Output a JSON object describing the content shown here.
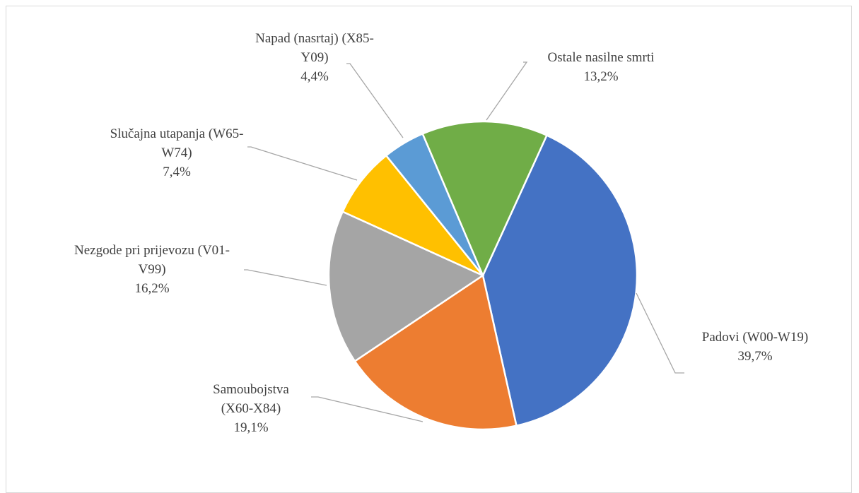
{
  "chart_data": {
    "type": "pie",
    "categories": [
      "Padovi (W00-W19)",
      "Samoubojstva (X60-X84)",
      "Nezgode pri prijevozu (V01-V99)",
      "Slučajna utapanja (W65-W74)",
      "Napad (nasrtaj) (X85-Y09)",
      "Ostale nasilne smrti"
    ],
    "values": [
      39.7,
      19.1,
      16.2,
      7.4,
      4.4,
      13.2
    ],
    "value_labels": [
      "39,7%",
      "19,1%",
      "16,2%",
      "7,4%",
      "4,4%",
      "13,2%"
    ],
    "colors": [
      "#4472c4",
      "#ed7d31",
      "#a5a5a5",
      "#ffc000",
      "#5b9bd5",
      "#70ad47"
    ]
  }
}
